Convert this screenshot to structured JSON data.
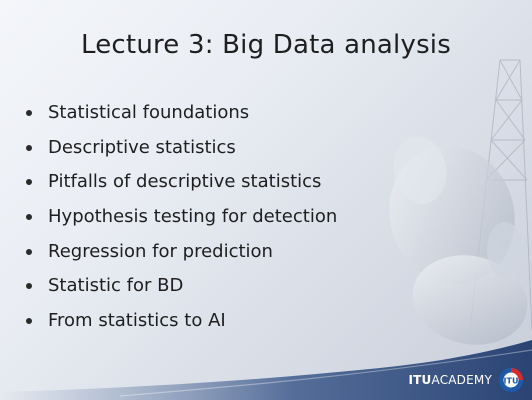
{
  "slide": {
    "title": "Lecture 3: Big Data analysis",
    "bullets": [
      "Statistical foundations",
      "Descriptive statistics",
      "Pitfalls of descriptive statistics",
      "Hypothesis testing for detection",
      "Regression for prediction",
      "Statistic for BD",
      "From statistics to AI"
    ]
  },
  "footer": {
    "brand_bold": "ITU",
    "brand_light": "ACADEMY",
    "logo_text": "ITU",
    "logo_icon": "itu-logo-icon"
  },
  "colors": {
    "footer_band": "#2f4a7a",
    "logo_blue": "#1e5aa8",
    "logo_red": "#d62c2c",
    "text": "#1e1e1e"
  }
}
